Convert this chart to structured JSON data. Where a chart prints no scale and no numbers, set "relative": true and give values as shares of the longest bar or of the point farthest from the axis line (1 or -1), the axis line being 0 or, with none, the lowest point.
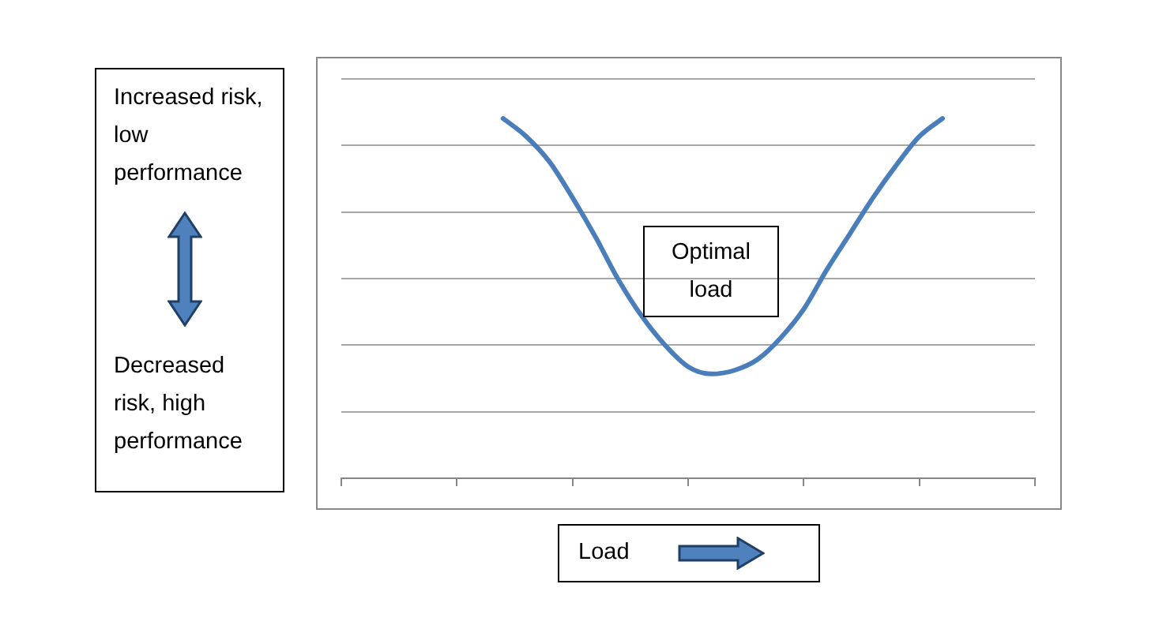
{
  "chart_data": {
    "type": "line",
    "relative": true,
    "xlabel": "Load",
    "categories": [
      null,
      null,
      null,
      null,
      null,
      null,
      null,
      null,
      null,
      null,
      null,
      null,
      null,
      null,
      null,
      null,
      null,
      null,
      null,
      null,
      null,
      null,
      null,
      null,
      null,
      null,
      null,
      null,
      null,
      null,
      null
    ],
    "series": [
      {
        "color": "#4a7ebb",
        "values": [
          null,
          null,
          null,
          null,
          null,
          null,
          null,
          1.0,
          0.95,
          0.88,
          0.78,
          0.67,
          0.55,
          0.45,
          0.37,
          0.31,
          0.29,
          0.3,
          0.33,
          0.39,
          0.47,
          0.58,
          0.68,
          0.78,
          0.87,
          0.95,
          1.0,
          null,
          null,
          null,
          null
        ]
      }
    ],
    "annotations": [
      "Increased risk, low performance",
      "Decreased risk, high performance",
      "Optimal load"
    ],
    "grid": "y",
    "legend": false,
    "tick_labels": false
  }
}
